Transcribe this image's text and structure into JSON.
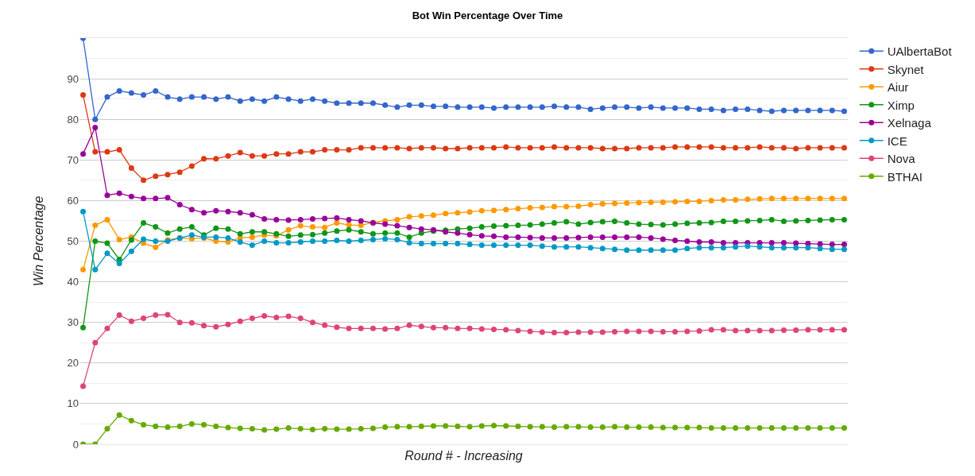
{
  "chart_data": {
    "type": "line",
    "title": "Bot Win Percentage Over Time",
    "xlabel": "Round # - Increasing",
    "ylabel": "Win Percentage",
    "categories": [
      null,
      null,
      null,
      null,
      null,
      null,
      null,
      null,
      null,
      null,
      null,
      null,
      null,
      null,
      null,
      null,
      null,
      null,
      null,
      null,
      null,
      null,
      null,
      null,
      null,
      null,
      null,
      null,
      null,
      null,
      null,
      null,
      null,
      null,
      null,
      null,
      null,
      null,
      null,
      null,
      null,
      null,
      null,
      null,
      null,
      null,
      null,
      null,
      null,
      null,
      null,
      null,
      null,
      null,
      null,
      null,
      null,
      null,
      null,
      null,
      null,
      null,
      null,
      null
    ],
    "series": [
      {
        "name": "UAlbertaBot",
        "color": "#3366cc",
        "values": [
          100,
          80,
          85.5,
          87,
          86.5,
          86,
          87,
          85.5,
          85,
          85.5,
          85.5,
          85,
          85.5,
          84.5,
          85,
          84.5,
          85.5,
          85,
          84.5,
          85,
          84.5,
          84,
          84,
          84,
          84,
          83.5,
          83,
          83.5,
          83.5,
          83.2,
          83.2,
          83,
          83,
          83,
          82.8,
          83,
          83,
          83,
          83,
          83.2,
          83,
          83,
          82.5,
          82.8,
          83,
          83,
          82.8,
          83,
          82.8,
          82.8,
          82.8,
          82.5,
          82.5,
          82.2,
          82.5,
          82.5,
          82.2,
          82,
          82.2,
          82.2,
          82.2,
          82.2,
          82.2,
          82
        ]
      },
      {
        "name": "Skynet",
        "color": "#dc3912",
        "values": [
          86,
          72,
          72,
          72.5,
          68,
          65,
          66,
          66.4,
          67,
          68.5,
          70.3,
          70.3,
          71,
          71.8,
          71,
          71,
          71.5,
          71.5,
          72,
          72,
          72.5,
          72.5,
          72.5,
          73,
          73,
          73,
          73,
          72.8,
          73,
          73,
          72.8,
          72.8,
          73,
          73,
          73,
          73.2,
          73,
          73,
          73,
          73.2,
          73,
          73,
          73,
          72.8,
          72.8,
          72.8,
          73,
          73,
          73,
          73.2,
          73.2,
          73.2,
          73.2,
          73,
          73,
          73,
          73.2,
          73,
          73,
          72.8,
          73,
          73,
          73,
          73
        ]
      },
      {
        "name": "Aiur",
        "color": "#ff9900",
        "values": [
          43,
          53.9,
          55.3,
          50.4,
          51,
          49.5,
          48.5,
          50.3,
          50.8,
          50.6,
          50.8,
          50,
          49.8,
          50.8,
          51,
          51.5,
          51.3,
          52.8,
          53.8,
          53.5,
          53.4,
          54.5,
          54,
          53.9,
          54.6,
          55,
          55.3,
          56,
          56.2,
          56.4,
          56.8,
          57,
          57.2,
          57.5,
          57.6,
          57.8,
          58,
          58.2,
          58.3,
          58.5,
          58.5,
          58.6,
          59,
          59.2,
          59.3,
          59.4,
          59.5,
          59.6,
          59.6,
          59.7,
          59.8,
          59.8,
          60,
          60.2,
          60.2,
          60.3,
          60.4,
          60.5,
          60.5,
          60.5,
          60.5,
          60.5,
          60.5,
          60.5
        ]
      },
      {
        "name": "Ximp",
        "color": "#109618",
        "values": [
          28.7,
          50,
          49.5,
          45.5,
          50.3,
          54.5,
          53.5,
          52,
          53,
          53.5,
          51.5,
          53.2,
          53,
          51.8,
          52.3,
          52.3,
          51.8,
          51.2,
          51.5,
          51.6,
          52,
          52.5,
          52.8,
          52.3,
          51.8,
          52,
          52,
          51,
          52,
          52.5,
          52.7,
          53,
          53.2,
          53.5,
          53.7,
          53.8,
          53.9,
          54,
          54.2,
          54.5,
          54.8,
          54.2,
          54.6,
          54.8,
          54.9,
          54.5,
          54.2,
          54.1,
          54,
          54.2,
          54.4,
          54.5,
          54.6,
          54.9,
          54.9,
          55,
          55.1,
          55.3,
          54.9,
          55,
          55.1,
          55.2,
          55.3,
          55.3
        ]
      },
      {
        "name": "Xelnaga",
        "color": "#990099",
        "values": [
          71.5,
          78,
          61.3,
          61.8,
          61,
          60.5,
          60.5,
          60.7,
          59,
          57.8,
          57,
          57.5,
          57.3,
          57,
          56.5,
          55.5,
          55.3,
          55.2,
          55.3,
          55.5,
          55.6,
          55.7,
          55.3,
          55,
          54.5,
          54.2,
          53.8,
          53.4,
          53,
          52.8,
          52.3,
          52,
          51.6,
          51.3,
          51.2,
          51,
          51,
          50.9,
          50.8,
          50.8,
          50.8,
          50.9,
          51,
          51,
          51,
          51,
          51,
          50.8,
          50.5,
          50.2,
          50,
          49.8,
          49.8,
          49.6,
          49.6,
          49.6,
          49.6,
          49.6,
          49.6,
          49.5,
          49.4,
          49.3,
          49.2,
          49.2
        ]
      },
      {
        "name": "ICE",
        "color": "#0099c6",
        "values": [
          57.3,
          43,
          47,
          44.5,
          47.5,
          50.5,
          50,
          50,
          50.8,
          51.5,
          51,
          51,
          50.8,
          49.8,
          49,
          50,
          49.6,
          49.6,
          49.8,
          50,
          50,
          50.2,
          50,
          50.2,
          50.4,
          50.6,
          50.4,
          49.6,
          49.4,
          49.4,
          49.4,
          49.4,
          49.2,
          49,
          49,
          49,
          49,
          49,
          48.8,
          48.6,
          48.6,
          48.6,
          48.4,
          48.2,
          48,
          47.8,
          47.8,
          47.8,
          47.8,
          47.8,
          48.2,
          48.4,
          48.4,
          48.4,
          48.6,
          48.8,
          48.6,
          48.4,
          48.4,
          48.4,
          48.4,
          48.2,
          48,
          48
        ]
      },
      {
        "name": "Nova",
        "color": "#dd4477",
        "values": [
          14.3,
          25,
          28.5,
          31.8,
          30.3,
          31,
          31.8,
          31.9,
          30,
          29.9,
          29.2,
          28.9,
          29.5,
          30.3,
          31,
          31.6,
          31.2,
          31.5,
          31,
          30,
          29.3,
          28.8,
          28.5,
          28.5,
          28.5,
          28.4,
          28.5,
          29.3,
          29,
          28.7,
          28.7,
          28.5,
          28.5,
          28.4,
          28.3,
          28.2,
          28,
          27.8,
          27.6,
          27.5,
          27.5,
          27.6,
          27.6,
          27.6,
          27.7,
          27.8,
          27.8,
          27.8,
          27.7,
          27.7,
          27.8,
          27.9,
          28.2,
          28.2,
          28,
          28,
          28,
          28,
          28.1,
          28.1,
          28.2,
          28.2,
          28.2,
          28.2
        ]
      },
      {
        "name": "BTHAI",
        "color": "#66aa00",
        "values": [
          0,
          0,
          3.8,
          7.2,
          5.8,
          4.8,
          4.4,
          4.2,
          4.4,
          5,
          4.8,
          4.4,
          4.1,
          3.9,
          3.8,
          3.5,
          3.7,
          4,
          3.8,
          3.6,
          3.8,
          3.7,
          3.7,
          3.8,
          3.9,
          4.2,
          4.3,
          4.3,
          4.4,
          4.5,
          4.5,
          4.4,
          4.3,
          4.5,
          4.6,
          4.5,
          4.4,
          4.3,
          4.3,
          4.2,
          4.3,
          4.3,
          4.2,
          4.2,
          4.3,
          4.2,
          4.2,
          4.2,
          4.1,
          4.1,
          4.1,
          4.1,
          4,
          4,
          4,
          4,
          4,
          4,
          4,
          4,
          4,
          4,
          4,
          4
        ]
      }
    ],
    "ylim": [
      0,
      100
    ],
    "yticks": [
      0,
      10,
      20,
      30,
      40,
      50,
      60,
      70,
      80,
      90
    ],
    "grid": "y",
    "legend": "top right",
    "marker": "circle",
    "line_style": "solid",
    "tick_labels": "y"
  }
}
